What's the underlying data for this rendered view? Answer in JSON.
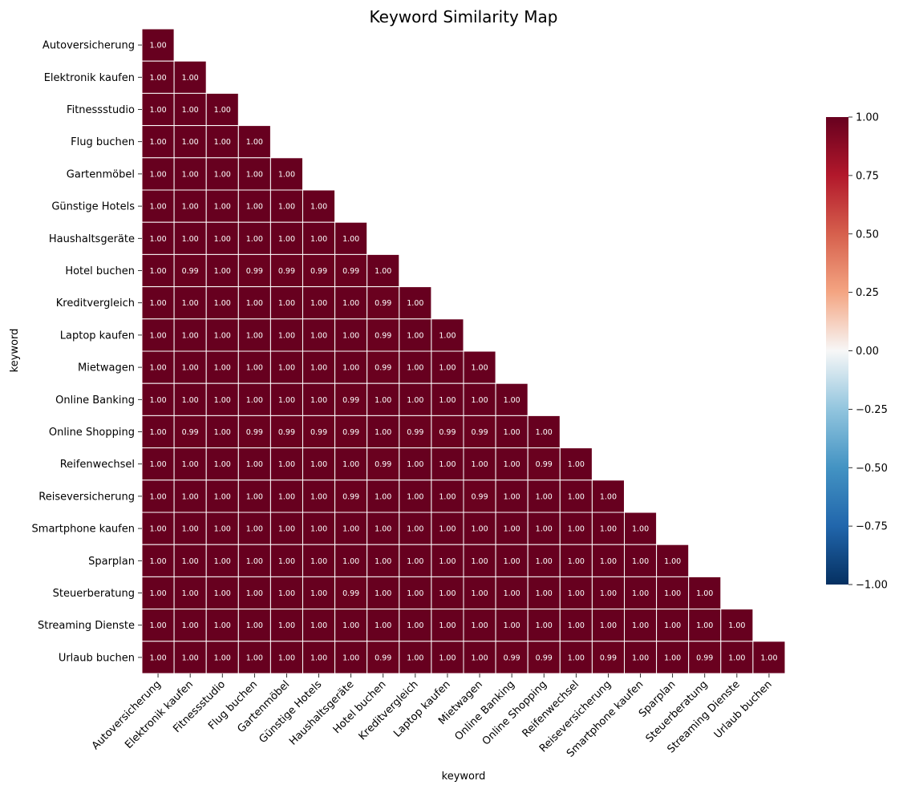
{
  "chart_data": {
    "type": "heatmap",
    "title": "Keyword Similarity Map",
    "xlabel": "keyword",
    "ylabel": "keyword",
    "mask": "upper-triangle",
    "categories": [
      "Autoversicherung",
      "Elektronik kaufen",
      "Fitnessstudio",
      "Flug buchen",
      "Gartenmöbel",
      "Günstige Hotels",
      "Haushaltsgeräte",
      "Hotel buchen",
      "Kreditvergleich",
      "Laptop kaufen",
      "Mietwagen",
      "Online Banking",
      "Online Shopping",
      "Reifenwechsel",
      "Reiseversicherung",
      "Smartphone kaufen",
      "Sparplan",
      "Steuerberatung",
      "Streaming Dienste",
      "Urlaub buchen"
    ],
    "values": [
      [
        1.0
      ],
      [
        1.0,
        1.0
      ],
      [
        1.0,
        1.0,
        1.0
      ],
      [
        1.0,
        1.0,
        1.0,
        1.0
      ],
      [
        1.0,
        1.0,
        1.0,
        1.0,
        1.0
      ],
      [
        1.0,
        1.0,
        1.0,
        1.0,
        1.0,
        1.0
      ],
      [
        1.0,
        1.0,
        1.0,
        1.0,
        1.0,
        1.0,
        1.0
      ],
      [
        1.0,
        0.99,
        1.0,
        0.99,
        0.99,
        0.99,
        0.99,
        1.0
      ],
      [
        1.0,
        1.0,
        1.0,
        1.0,
        1.0,
        1.0,
        1.0,
        0.99,
        1.0
      ],
      [
        1.0,
        1.0,
        1.0,
        1.0,
        1.0,
        1.0,
        1.0,
        0.99,
        1.0,
        1.0
      ],
      [
        1.0,
        1.0,
        1.0,
        1.0,
        1.0,
        1.0,
        1.0,
        0.99,
        1.0,
        1.0,
        1.0
      ],
      [
        1.0,
        1.0,
        1.0,
        1.0,
        1.0,
        1.0,
        0.99,
        1.0,
        1.0,
        1.0,
        1.0,
        1.0
      ],
      [
        1.0,
        0.99,
        1.0,
        0.99,
        0.99,
        0.99,
        0.99,
        1.0,
        0.99,
        0.99,
        0.99,
        1.0,
        1.0
      ],
      [
        1.0,
        1.0,
        1.0,
        1.0,
        1.0,
        1.0,
        1.0,
        0.99,
        1.0,
        1.0,
        1.0,
        1.0,
        0.99,
        1.0
      ],
      [
        1.0,
        1.0,
        1.0,
        1.0,
        1.0,
        1.0,
        0.99,
        1.0,
        1.0,
        1.0,
        0.99,
        1.0,
        1.0,
        1.0,
        1.0
      ],
      [
        1.0,
        1.0,
        1.0,
        1.0,
        1.0,
        1.0,
        1.0,
        1.0,
        1.0,
        1.0,
        1.0,
        1.0,
        1.0,
        1.0,
        1.0,
        1.0
      ],
      [
        1.0,
        1.0,
        1.0,
        1.0,
        1.0,
        1.0,
        1.0,
        1.0,
        1.0,
        1.0,
        1.0,
        1.0,
        1.0,
        1.0,
        1.0,
        1.0,
        1.0
      ],
      [
        1.0,
        1.0,
        1.0,
        1.0,
        1.0,
        1.0,
        0.99,
        1.0,
        1.0,
        1.0,
        1.0,
        1.0,
        1.0,
        1.0,
        1.0,
        1.0,
        1.0,
        1.0
      ],
      [
        1.0,
        1.0,
        1.0,
        1.0,
        1.0,
        1.0,
        1.0,
        1.0,
        1.0,
        1.0,
        1.0,
        1.0,
        1.0,
        1.0,
        1.0,
        1.0,
        1.0,
        1.0,
        1.0
      ],
      [
        1.0,
        1.0,
        1.0,
        1.0,
        1.0,
        1.0,
        1.0,
        0.99,
        1.0,
        1.0,
        1.0,
        0.99,
        0.99,
        1.0,
        0.99,
        1.0,
        1.0,
        0.99,
        1.0,
        1.0
      ]
    ],
    "vmin": -1.0,
    "vmax": 1.0,
    "colormap": "RdBu_r",
    "colorbar_ticks": [
      "−1.00",
      "−0.75",
      "−0.50",
      "−0.25",
      "0.00",
      "0.25",
      "0.50",
      "0.75",
      "1.00"
    ],
    "colors": {
      "max": "#67001f",
      "mid": "#f7f7f7",
      "min": "#053061",
      "cell_border": "#ffffff",
      "annotation_text": "#ffffff"
    }
  }
}
